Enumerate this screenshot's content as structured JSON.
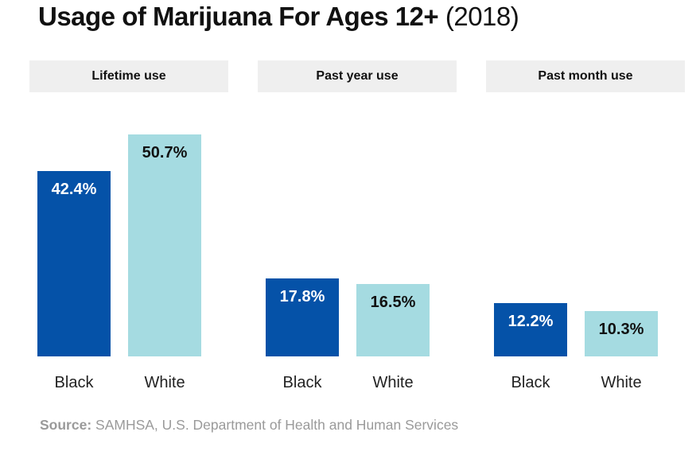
{
  "title": {
    "main": "Usage of Marijuana For Ages 12+",
    "year": "(2018)"
  },
  "colors": {
    "black": "#0552a8",
    "white": "#a5dbe1",
    "header_bg": "#efefef"
  },
  "chart_data": {
    "type": "bar",
    "title": "Usage of Marijuana For Ages 12+ (2018)",
    "groups": [
      {
        "label": "Lifetime use",
        "categories": [
          "Black",
          "White"
        ],
        "values": [
          42.4,
          50.7
        ],
        "value_labels": [
          "42.4%",
          "50.7%"
        ]
      },
      {
        "label": "Past year use",
        "categories": [
          "Black",
          "White"
        ],
        "values": [
          17.8,
          16.5
        ],
        "value_labels": [
          "17.8%",
          "16.5%"
        ]
      },
      {
        "label": "Past month use",
        "categories": [
          "Black",
          "White"
        ],
        "values": [
          12.2,
          10.3
        ],
        "value_labels": [
          "12.2%",
          "10.3%"
        ]
      }
    ],
    "ylim": [
      0,
      55
    ],
    "grid": false
  },
  "source": {
    "label": "Source:",
    "text": " SAMHSA, U.S. Department of Health and Human Services"
  }
}
